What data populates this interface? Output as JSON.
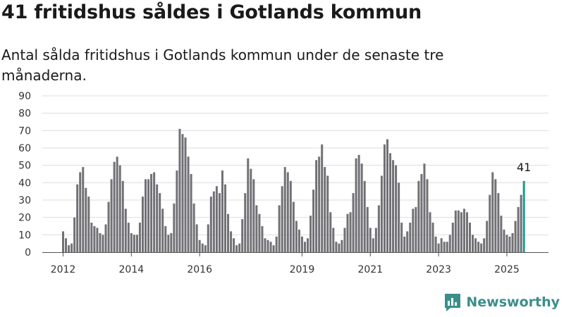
{
  "title": "41 fritidshus såldes i Gotlands kommun",
  "subtitle": "Antal sålda fritidshus i Gotlands kommun under de senaste tre månaderna.",
  "brand": {
    "name": "Newsworthy",
    "icon": "newsworthy-logo-icon",
    "color": "#3a8f8a"
  },
  "colors": {
    "bar": "#717075",
    "highlight": "#1a9a92",
    "grid": "#dddddd",
    "axis": "#555555"
  },
  "chart_data": {
    "type": "bar",
    "title": "41 fritidshus såldes i Gotlands kommun",
    "subtitle": "Antal sålda fritidshus i Gotlands kommun under de senaste tre månaderna.",
    "ylim": [
      0,
      90
    ],
    "yticks": [
      0,
      10,
      20,
      30,
      40,
      50,
      60,
      70,
      80,
      90
    ],
    "xticks": [
      {
        "label": "2012",
        "index": 0
      },
      {
        "label": "2014",
        "index": 24
      },
      {
        "label": "2016",
        "index": 48
      },
      {
        "label": "2019",
        "index": 84
      },
      {
        "label": "2021",
        "index": 108
      },
      {
        "label": "2023",
        "index": 132
      },
      {
        "label": "2025",
        "index": 156
      }
    ],
    "grid": true,
    "period": "monthly, rolling three-month totals, Jan 2012 – Jul 2025",
    "values": [
      12,
      8,
      4,
      5,
      20,
      39,
      46,
      49,
      37,
      32,
      17,
      15,
      14,
      11,
      10,
      16,
      29,
      42,
      52,
      55,
      50,
      41,
      25,
      17,
      11,
      10,
      10,
      17,
      32,
      42,
      42,
      45,
      46,
      39,
      34,
      25,
      15,
      10,
      11,
      28,
      47,
      71,
      68,
      66,
      55,
      45,
      28,
      16,
      7,
      5,
      4,
      16,
      32,
      35,
      38,
      34,
      47,
      39,
      22,
      12,
      8,
      4,
      5,
      19,
      34,
      54,
      48,
      42,
      27,
      22,
      15,
      8,
      7,
      6,
      4,
      9,
      27,
      38,
      49,
      46,
      41,
      29,
      18,
      13,
      9,
      6,
      8,
      21,
      36,
      53,
      55,
      62,
      49,
      44,
      23,
      14,
      6,
      5,
      7,
      14,
      22,
      23,
      34,
      54,
      56,
      51,
      41,
      26,
      14,
      8,
      14,
      27,
      44,
      62,
      65,
      57,
      53,
      50,
      40,
      17,
      9,
      12,
      17,
      25,
      26,
      41,
      45,
      51,
      42,
      23,
      17,
      9,
      5,
      8,
      6,
      6,
      10,
      17,
      24,
      24,
      23,
      25,
      23,
      17,
      10,
      8,
      6,
      5,
      8,
      18,
      33,
      46,
      42,
      34,
      21,
      13,
      10,
      9,
      11,
      18,
      26,
      33,
      41
    ],
    "highlight": {
      "index": 162,
      "value": 41,
      "label": "41"
    }
  }
}
